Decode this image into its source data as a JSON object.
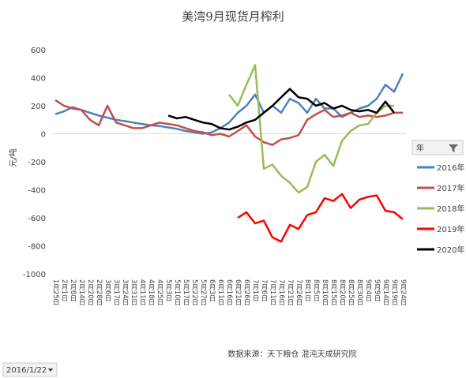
{
  "chart_data": {
    "type": "line",
    "title": "美湾9月现货月榨利",
    "y_label": "元/吨",
    "source": "数据来源：天下粮仓 混沌天成研究院",
    "legend_title": "年",
    "date_filter": "2016/1/22",
    "categories": [
      "1月25日",
      "2月1日",
      "2月8日",
      "2月14日",
      "2月20日",
      "2月28日",
      "3月6日",
      "3月17日",
      "3月24日",
      "3月31日",
      "4月11日",
      "4月18日",
      "4月25日",
      "5月3日",
      "5月10日",
      "5月17日",
      "5月22日",
      "5月27日",
      "6月3日",
      "6月11日",
      "6月16日",
      "6月21日",
      "6月26日",
      "7月1日",
      "7月6日",
      "7月11日",
      "7月16日",
      "7月21日",
      "7月26日",
      "8月1日",
      "8月5日",
      "8月10日",
      "8月15日",
      "8月20日",
      "8月25日",
      "8月30日",
      "9月4日",
      "9月9日",
      "9月14日",
      "9月19日",
      "9月24日"
    ],
    "ylim": [
      -1000,
      600
    ],
    "yticks": [
      600,
      400,
      200,
      0,
      -200,
      -400,
      -600,
      -800,
      -1000
    ],
    "grid": false,
    "legend": "right",
    "series": [
      {
        "name": "2016年",
        "color": "#4f81bd",
        "values": [
          140,
          160,
          190,
          170,
          150,
          130,
          115,
          100,
          90,
          80,
          70,
          60,
          55,
          45,
          35,
          20,
          10,
          0,
          10,
          40,
          80,
          150,
          200,
          280,
          150,
          200,
          150,
          250,
          220,
          150,
          250,
          180,
          180,
          120,
          150,
          180,
          200,
          250,
          350,
          300,
          430
        ]
      },
      {
        "name": "2017年",
        "color": "#c0504d",
        "values": [
          240,
          200,
          180,
          170,
          100,
          60,
          200,
          80,
          60,
          40,
          40,
          60,
          80,
          70,
          60,
          40,
          20,
          10,
          -10,
          0,
          -20,
          20,
          60,
          -20,
          -60,
          -80,
          -40,
          -30,
          -10,
          100,
          140,
          170,
          120,
          130,
          150,
          120,
          130,
          120,
          130,
          150,
          150
        ]
      },
      {
        "name": "2018年",
        "color": "#9bbb59",
        "values": [
          null,
          null,
          null,
          null,
          null,
          null,
          null,
          null,
          null,
          null,
          null,
          null,
          null,
          null,
          null,
          null,
          null,
          null,
          null,
          null,
          280,
          200,
          350,
          490,
          -250,
          -220,
          -300,
          -350,
          -420,
          -380,
          -200,
          -150,
          -230,
          -50,
          20,
          60,
          70,
          150,
          200,
          200,
          null
        ]
      },
      {
        "name": "2019年",
        "color": "#ff0000",
        "values": [
          null,
          null,
          null,
          null,
          null,
          null,
          null,
          null,
          null,
          null,
          null,
          null,
          null,
          null,
          null,
          null,
          null,
          null,
          null,
          null,
          null,
          -600,
          -560,
          -640,
          -620,
          -740,
          -770,
          -650,
          -680,
          -580,
          -560,
          -460,
          -480,
          -430,
          -530,
          -470,
          -450,
          -440,
          -550,
          -560,
          -610
        ]
      },
      {
        "name": "2020年",
        "color": "#000000",
        "values": [
          null,
          null,
          null,
          null,
          null,
          null,
          null,
          null,
          null,
          null,
          null,
          null,
          null,
          130,
          110,
          120,
          100,
          80,
          70,
          40,
          30,
          50,
          80,
          100,
          150,
          200,
          260,
          320,
          260,
          250,
          200,
          220,
          180,
          200,
          170,
          160,
          170,
          150,
          230,
          150,
          null
        ]
      }
    ]
  }
}
